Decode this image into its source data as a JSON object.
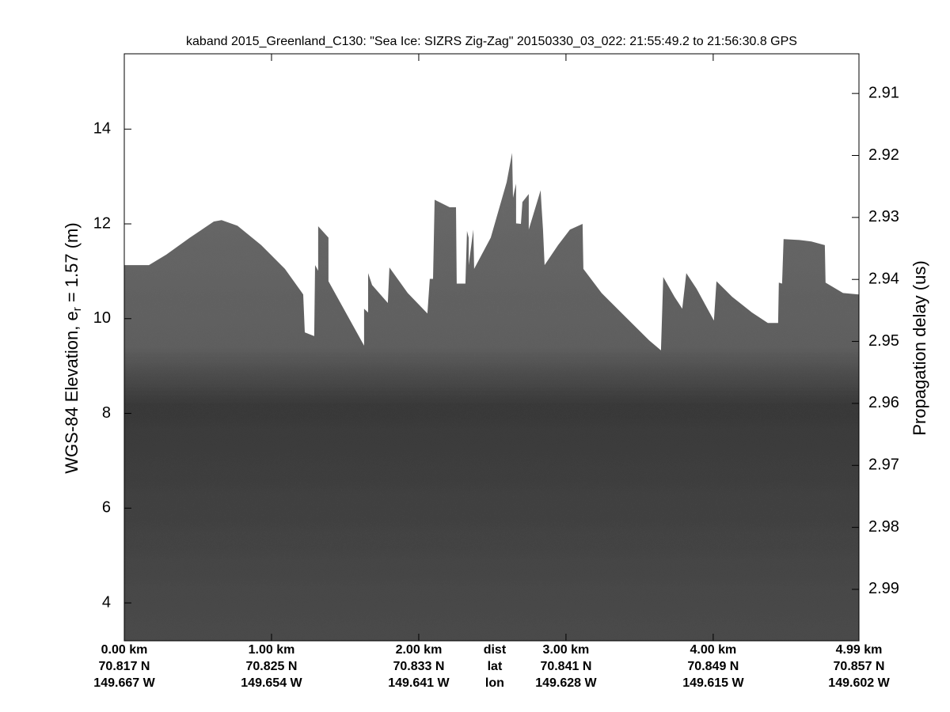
{
  "chart_data": {
    "type": "echogram",
    "title": "kaband 2015_Greenland_C130: \"Sea Ice: SIZRS Zig-Zag\"  20150330_03_022: 21:55:49.2 to 21:56:30.8 GPS",
    "ylabel": "WGS-84 Elevation, e",
    "ylabel_subscript": "r",
    "ylabel_suffix": " = 1.57 (m)",
    "y2label": "Propagation delay (us)",
    "ylim": [
      3.2,
      15.59
    ],
    "yticks": [
      4,
      6,
      8,
      10,
      12,
      14
    ],
    "y2lim": [
      2.9036,
      2.9983
    ],
    "y2ticks": [
      2.91,
      2.92,
      2.93,
      2.94,
      2.95,
      2.96,
      2.97,
      2.98,
      2.99
    ],
    "xlim": [
      0,
      4.99
    ],
    "xticks": [
      {
        "value": 0,
        "label": "0.00 km"
      },
      {
        "value": 1,
        "label": "1.00 km"
      },
      {
        "value": 2,
        "label": "2.00 km"
      },
      {
        "value": 3,
        "label": "3.00 km"
      },
      {
        "value": 4,
        "label": "4.00 km"
      },
      {
        "value": 4.99,
        "label": "4.99 km"
      }
    ],
    "xtick_lat": [
      "70.817 N",
      "70.825 N",
      "70.833 N",
      "70.841 N",
      "70.849 N",
      "70.857 N"
    ],
    "xtick_lon": [
      "149.667 W",
      "149.654 W",
      "149.641 W",
      "149.628 W",
      "149.615 W",
      "149.602 W"
    ],
    "row_labels": [
      "dist",
      "lat",
      "lon"
    ],
    "row_label_x": 2.5,
    "surface": {
      "x": [
        0,
        0.167,
        0.285,
        0.446,
        0.608,
        0.661,
        0.769,
        0.93,
        1.091,
        1.215,
        1.226,
        1.29,
        1.296,
        1.317,
        1.317,
        1.387,
        1.387,
        1.629,
        1.629,
        1.656,
        1.656,
        1.683,
        1.79,
        1.801,
        1.925,
        2.059,
        2.075,
        2.097,
        2.108,
        2.21,
        2.253,
        2.258,
        2.317,
        2.328,
        2.339,
        2.339,
        2.371,
        2.376,
        2.489,
        2.597,
        2.634,
        2.64,
        2.651,
        2.661,
        2.661,
        2.694,
        2.704,
        2.747,
        2.747,
        2.828,
        2.833,
        2.844,
        2.855,
        2.946,
        3.027,
        3.113,
        3.118,
        3.242,
        3.403,
        3.565,
        3.645,
        3.661,
        3.737,
        3.79,
        3.817,
        3.887,
        4.005,
        4.022,
        4.129,
        4.263,
        4.371,
        4.441,
        4.446,
        4.468,
        4.478,
        4.586,
        4.667,
        4.758,
        4.763,
        4.882,
        4.99
      ],
      "values": [
        11.13,
        11.13,
        11.35,
        11.71,
        12.05,
        12.08,
        11.96,
        11.55,
        11.05,
        10.51,
        9.71,
        9.63,
        11.13,
        11.01,
        11.95,
        11.71,
        10.79,
        9.43,
        10.21,
        10.13,
        10.96,
        10.71,
        10.33,
        11.08,
        10.54,
        10.11,
        10.84,
        10.84,
        12.51,
        12.35,
        12.35,
        10.74,
        10.74,
        11.85,
        11.71,
        11.13,
        11.88,
        11.05,
        11.71,
        12.88,
        13.5,
        12.55,
        12.71,
        12.85,
        12.01,
        12.0,
        12.46,
        12.63,
        11.88,
        12.71,
        12.41,
        11.88,
        11.13,
        11.55,
        11.88,
        12.0,
        11.05,
        10.54,
        10.04,
        9.54,
        9.33,
        10.88,
        10.46,
        10.21,
        10.96,
        10.63,
        9.96,
        10.79,
        10.46,
        10.13,
        9.91,
        9.91,
        10.76,
        10.74,
        11.68,
        11.66,
        11.63,
        11.55,
        10.76,
        10.54,
        10.51
      ]
    }
  }
}
